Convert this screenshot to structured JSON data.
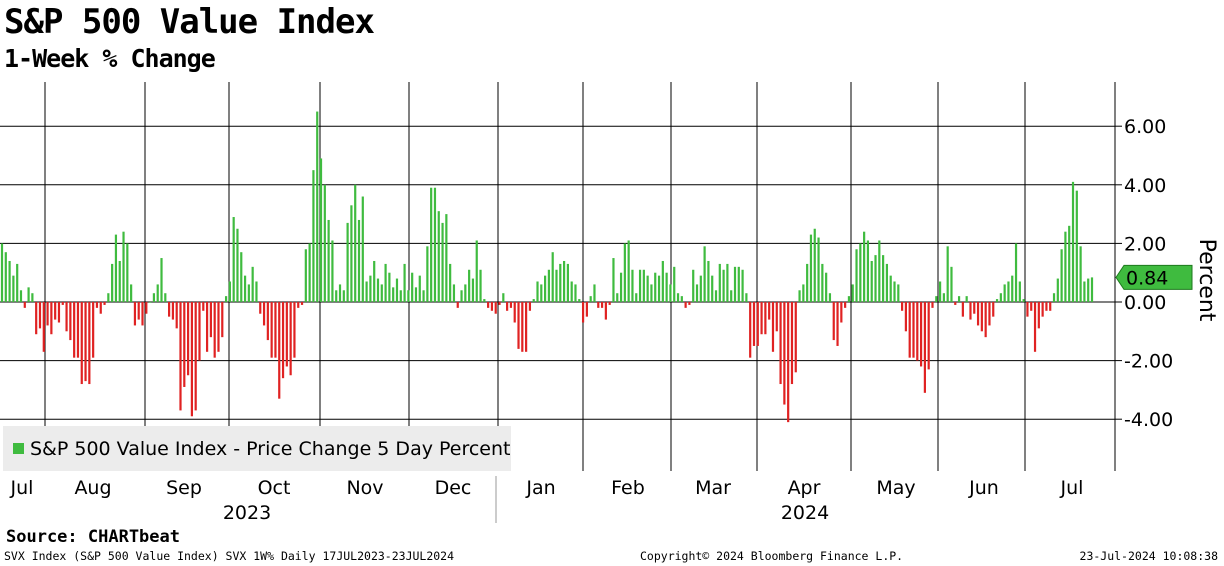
{
  "header": {
    "title": "S&P 500 Value Index",
    "subtitle": "1-Week % Change"
  },
  "colors": {
    "positive": "#3fbb3f",
    "negative": "#e02222",
    "grid": "#000000",
    "legend_bg": "#ececec",
    "last_value_bg": "#3fbb3f"
  },
  "chart_data": {
    "type": "bar",
    "ylabel": "Percent",
    "ylim": [
      -5.8,
      7.4
    ],
    "yticks": [
      6.0,
      4.0,
      2.0,
      0.0,
      -2.0,
      -4.0
    ],
    "ytick_labels": [
      "6.00",
      "4.00",
      "2.00",
      "0.00",
      "-2.00",
      "-4.00"
    ],
    "legend": "S&P 500 Value Index - Price Change 5 Day Percent",
    "last_value": 0.84,
    "last_value_label": "0.84",
    "month_labels": [
      "Jul",
      "Aug",
      "Sep",
      "Oct",
      "Nov",
      "Dec",
      "Jan",
      "Feb",
      "Mar",
      "Apr",
      "May",
      "Jun",
      "Jul"
    ],
    "year_labels": [
      "2023",
      "2024"
    ],
    "values": [
      2.0,
      1.7,
      1.4,
      0.9,
      1.3,
      0.4,
      -0.2,
      0.5,
      0.3,
      -1.1,
      -0.9,
      -1.7,
      -0.8,
      -1.1,
      -0.6,
      -0.7,
      -0.1,
      -1.0,
      -1.3,
      -1.9,
      -1.9,
      -2.8,
      -2.7,
      -2.8,
      -1.9,
      -0.2,
      -0.4,
      -0.1,
      0.3,
      1.3,
      2.3,
      1.4,
      2.4,
      2.0,
      0.6,
      -0.8,
      -0.6,
      -0.8,
      -0.4,
      0.0,
      0.3,
      0.6,
      1.5,
      0.3,
      -0.5,
      -0.6,
      -0.9,
      -3.7,
      -2.9,
      -2.5,
      -3.9,
      -3.7,
      -2.0,
      -0.3,
      -1.7,
      -1.2,
      -1.9,
      -1.7,
      -1.2,
      0.2,
      0.7,
      2.9,
      2.5,
      1.7,
      0.9,
      0.6,
      1.2,
      0.7,
      -0.4,
      -0.8,
      -1.3,
      -1.9,
      -1.9,
      -3.3,
      -2.6,
      -2.2,
      -2.5,
      -1.9,
      -0.2,
      -0.1,
      1.8,
      2.0,
      4.5,
      6.5,
      4.9,
      4.0,
      2.8,
      2.1,
      0.4,
      0.6,
      0.4,
      2.7,
      3.3,
      4.0,
      2.8,
      3.6,
      0.7,
      0.9,
      1.4,
      0.8,
      0.6,
      1.3,
      1.0,
      0.5,
      0.8,
      0.4,
      1.3,
      0.4,
      1.0,
      0.5,
      0.9,
      0.4,
      1.9,
      3.9,
      3.9,
      3.1,
      2.7,
      3.0,
      1.3,
      0.6,
      -0.2,
      0.4,
      0.6,
      1.1,
      0.8,
      2.1,
      1.1,
      0.1,
      -0.2,
      -0.3,
      -0.4,
      -0.1,
      0.3,
      -0.3,
      -0.2,
      -0.7,
      -1.6,
      -1.7,
      -1.7,
      -0.3,
      0.1,
      0.7,
      0.6,
      0.9,
      1.1,
      1.7,
      1.1,
      1.3,
      1.4,
      1.3,
      0.7,
      0.6,
      0.1,
      -0.7,
      -0.5,
      0.2,
      0.6,
      -0.2,
      -0.2,
      -0.6,
      -0.1,
      1.5,
      0.3,
      1.0,
      2.0,
      2.1,
      1.1,
      0.3,
      1.1,
      1.1,
      0.9,
      0.6,
      1.0,
      0.9,
      1.4,
      1.0,
      0.6,
      1.2,
      0.3,
      0.2,
      -0.2,
      -0.1,
      1.1,
      0.6,
      0.9,
      1.9,
      1.4,
      0.9,
      0.4,
      1.3,
      1.1,
      1.3,
      0.4,
      1.2,
      1.2,
      1.1,
      0.3,
      -1.9,
      -1.5,
      -1.5,
      -1.1,
      -1.1,
      -0.6,
      -1.7,
      -1.0,
      -2.8,
      -3.5,
      -4.1,
      -2.8,
      -2.4,
      0.4,
      0.6,
      1.3,
      2.3,
      2.5,
      2.2,
      1.3,
      1.0,
      0.3,
      -1.3,
      -1.5,
      -0.7,
      -0.2,
      0.2,
      0.6,
      1.8,
      2.0,
      2.4,
      2.1,
      1.4,
      1.6,
      2.1,
      1.6,
      1.3,
      0.9,
      0.7,
      0.6,
      -0.3,
      -1.0,
      -1.9,
      -1.9,
      -2.0,
      -2.2,
      -3.1,
      -2.3,
      -0.2,
      0.2,
      0.7,
      0.3,
      1.9,
      1.2,
      -0.1,
      0.2,
      -0.5,
      0.2,
      -0.6,
      -0.4,
      -0.8,
      -1.0,
      -1.2,
      -0.8,
      -0.5,
      0.1,
      0.3,
      0.6,
      0.7,
      0.9,
      2.0,
      0.7,
      0.1,
      -0.5,
      -0.3,
      -1.7,
      -0.9,
      -0.5,
      -0.3,
      -0.3,
      0.3,
      0.8,
      1.8,
      2.4,
      2.6,
      4.1,
      3.8,
      1.9,
      0.7,
      0.8,
      0.84
    ]
  },
  "footer": {
    "source": "Source: CHARTbeat",
    "left": "SVX Index (S&P 500 Value Index) SVX 1W%  Daily 17JUL2023-23JUL2024",
    "middle": "Copyright© 2024 Bloomberg Finance L.P.",
    "right": "23-Jul-2024 10:08:38"
  }
}
